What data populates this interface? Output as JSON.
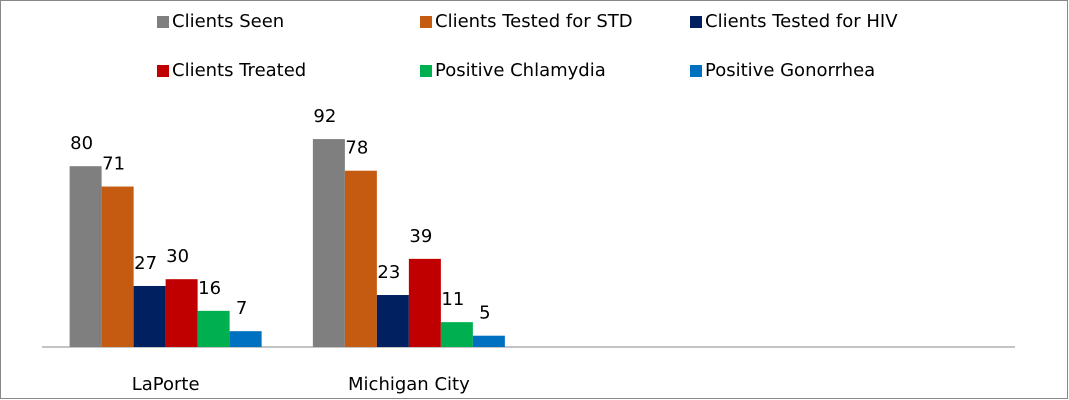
{
  "chart_data": {
    "type": "bar",
    "categories": [
      "LaPorte",
      "Michigan City",
      null,
      null
    ],
    "series": [
      {
        "name": "Clients Seen",
        "color": "#7f7f7f",
        "values": [
          80,
          92,
          null,
          null
        ]
      },
      {
        "name": "Clients Tested for STD",
        "color": "#c55a11",
        "values": [
          71,
          78,
          null,
          null
        ]
      },
      {
        "name": "Clients Tested for HIV",
        "color": "#002060",
        "values": [
          27,
          23,
          null,
          null
        ]
      },
      {
        "name": "Clients Treated",
        "color": "#c00000",
        "values": [
          30,
          39,
          null,
          null
        ]
      },
      {
        "name": "Positive Chlamydia",
        "color": "#00b050",
        "values": [
          16,
          11,
          null,
          null
        ]
      },
      {
        "name": "Positive Gonorrhea",
        "color": "#0070c0",
        "values": [
          7,
          5,
          null,
          null
        ]
      }
    ],
    "ylim": [
      0,
      100
    ],
    "legend": "top"
  }
}
